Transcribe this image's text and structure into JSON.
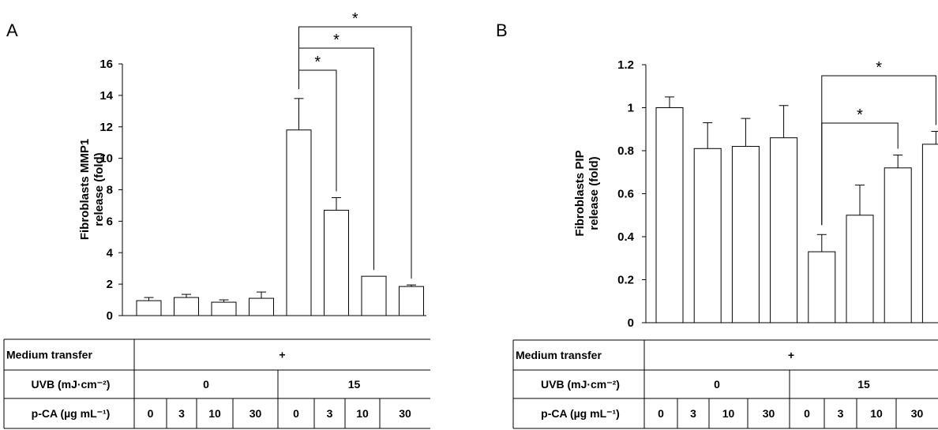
{
  "chart_data": [
    {
      "panel": "A",
      "type": "bar",
      "ylabel_line1": "Fibroblasts MMP1",
      "ylabel_line2": "release (fold)",
      "ylim": [
        0,
        16
      ],
      "yticks": [
        0,
        2,
        4,
        6,
        8,
        10,
        12,
        14,
        16
      ],
      "values": [
        0.95,
        1.15,
        0.85,
        1.1,
        11.8,
        6.7,
        2.5,
        1.85
      ],
      "errors": [
        0.2,
        0.2,
        0.15,
        0.4,
        2.0,
        0.8,
        0.0,
        0.1
      ],
      "significance": [
        {
          "from": 4,
          "to": 5,
          "label": "*"
        },
        {
          "from": 4,
          "to": 6,
          "label": "*"
        },
        {
          "from": 4,
          "to": 7,
          "label": "*"
        }
      ],
      "table": {
        "row1_label": "Medium transfer",
        "row1_value": "+",
        "row2_label": "UVB (mJ·cm⁻²)",
        "row2_groups": [
          "0",
          "15"
        ],
        "row3_label": "p-CA (µg mL⁻¹)",
        "row3_values": [
          "0",
          "3",
          "10",
          "30",
          "0",
          "3",
          "10",
          "30"
        ]
      }
    },
    {
      "panel": "B",
      "type": "bar",
      "ylabel_line1": "Fibroblasts PIP",
      "ylabel_line2": "release (fold)",
      "ylim": [
        0,
        1.2
      ],
      "yticks": [
        0,
        0.2,
        0.4,
        0.6,
        0.8,
        1,
        1.2
      ],
      "values": [
        1.0,
        0.81,
        0.82,
        0.86,
        0.33,
        0.5,
        0.72,
        0.83
      ],
      "errors": [
        0.05,
        0.12,
        0.13,
        0.15,
        0.08,
        0.14,
        0.06,
        0.06
      ],
      "significance": [
        {
          "from": 4,
          "to": 6,
          "label": "*"
        },
        {
          "from": 4,
          "to": 7,
          "label": "*"
        }
      ],
      "table": {
        "row1_label": "Medium transfer",
        "row1_value": "+",
        "row2_label": "UVB (mJ·cm⁻²)",
        "row2_groups": [
          "0",
          "15"
        ],
        "row3_label": "p-CA (µg mL⁻¹)",
        "row3_values": [
          "0",
          "3",
          "10",
          "30",
          "0",
          "3",
          "10",
          "30"
        ]
      }
    }
  ]
}
